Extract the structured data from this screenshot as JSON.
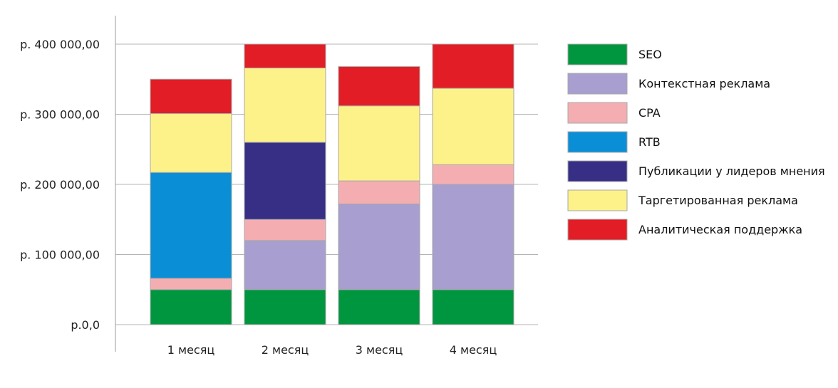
{
  "chart_data": {
    "type": "bar",
    "stacked": true,
    "title": "",
    "xlabel": "",
    "ylabel": "",
    "categories": [
      "1 месяц",
      "2 месяц",
      "3 месяц",
      "4 месяц"
    ],
    "ylim": [
      0,
      400000
    ],
    "yticks": [
      0,
      100000,
      200000,
      300000,
      400000
    ],
    "ytick_labels": [
      "р.0,0",
      "р. 100 000,00",
      "р. 200 000,00",
      "р. 300 000,00",
      "р. 400 000,00"
    ],
    "grid": true,
    "legend_position": "right",
    "series": [
      {
        "name": "SEO",
        "color": "#00963f",
        "values": [
          50000,
          50000,
          50000,
          50000
        ]
      },
      {
        "name": "Контекстная реклама",
        "color": "#a89ecf",
        "values": [
          0,
          70000,
          122000,
          150000
        ]
      },
      {
        "name": "CPA",
        "color": "#f4aeb2",
        "values": [
          16000,
          30000,
          33000,
          28000
        ]
      },
      {
        "name": "RTB",
        "color": "#0a8fd6",
        "values": [
          151000,
          0,
          0,
          0
        ]
      },
      {
        "name": "Публикации у лидеров мнения",
        "color": "#372f86",
        "values": [
          0,
          110000,
          0,
          0
        ]
      },
      {
        "name": "Таргетированная реклама",
        "color": "#fdf18a",
        "values": [
          84000,
          106000,
          107000,
          109000
        ]
      },
      {
        "name": "Аналитическая поддержка",
        "color": "#e31d25",
        "values": [
          49000,
          34000,
          56000,
          63000
        ]
      }
    ]
  }
}
